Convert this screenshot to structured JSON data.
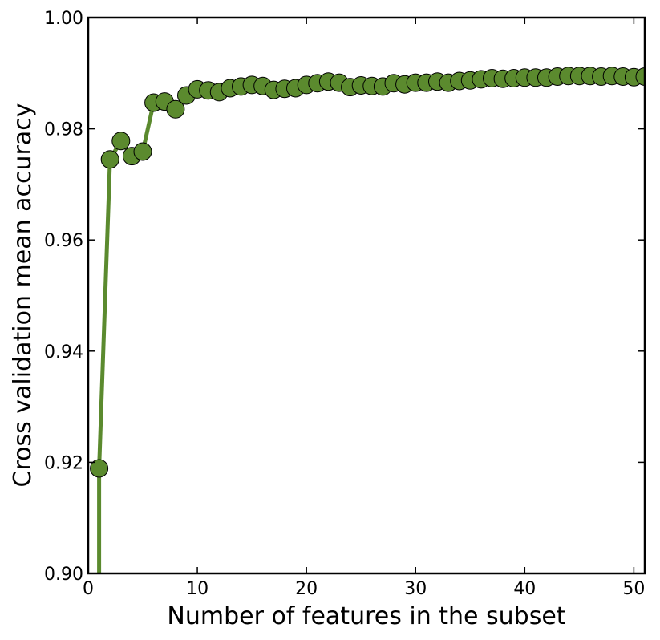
{
  "chart_data": {
    "type": "line",
    "title": "",
    "xlabel": "Number of features in the subset",
    "ylabel": "Cross validation mean accuracy",
    "xlim": [
      0,
      51
    ],
    "ylim": [
      0.9,
      1.0
    ],
    "x_ticks": [
      0,
      10,
      20,
      30,
      40,
      50
    ],
    "y_ticks": [
      0.9,
      0.92,
      0.94,
      0.96,
      0.98,
      1.0
    ],
    "x_tick_labels": [
      "0",
      "10",
      "20",
      "30",
      "40",
      "50"
    ],
    "y_tick_labels": [
      "0.90",
      "0.92",
      "0.94",
      "0.96",
      "0.98",
      "1.00"
    ],
    "grid": false,
    "series": [
      {
        "color": "#5b8a2e",
        "marker": "circle",
        "x": [
          1,
          2,
          3,
          4,
          5,
          6,
          7,
          8,
          9,
          10,
          11,
          12,
          13,
          14,
          15,
          16,
          17,
          18,
          19,
          20,
          21,
          22,
          23,
          24,
          25,
          26,
          27,
          28,
          29,
          30,
          31,
          32,
          33,
          34,
          35,
          36,
          37,
          38,
          39,
          40,
          41,
          42,
          43,
          44,
          45,
          46,
          47,
          48,
          49,
          50,
          51
        ],
        "y": [
          0.9189,
          0.9745,
          0.9778,
          0.9751,
          0.9759,
          0.9847,
          0.9849,
          0.9835,
          0.986,
          0.9871,
          0.9869,
          0.9866,
          0.9873,
          0.9876,
          0.9879,
          0.9877,
          0.987,
          0.9872,
          0.9873,
          0.9879,
          0.9882,
          0.9885,
          0.9883,
          0.9875,
          0.9878,
          0.9877,
          0.9876,
          0.9882,
          0.988,
          0.9883,
          0.9883,
          0.9885,
          0.9883,
          0.9886,
          0.9887,
          0.9889,
          0.9891,
          0.989,
          0.9891,
          0.9892,
          0.9892,
          0.9892,
          0.9894,
          0.9895,
          0.9895,
          0.9895,
          0.9894,
          0.9895,
          0.9894,
          0.9893,
          0.9894
        ]
      }
    ]
  }
}
